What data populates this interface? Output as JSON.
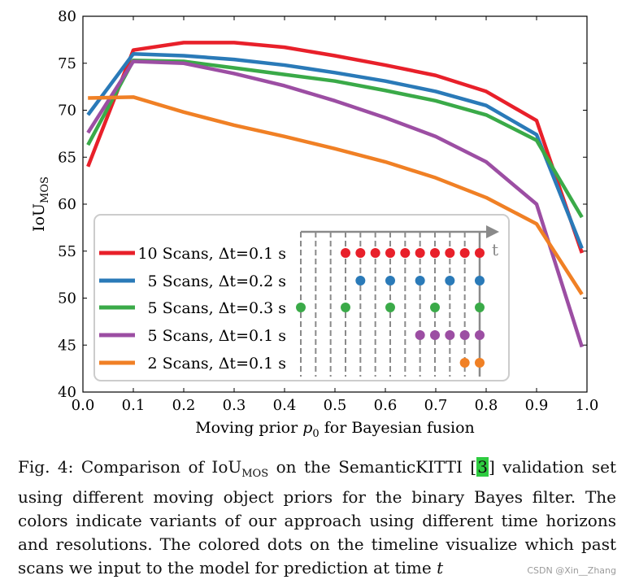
{
  "chart_data": {
    "type": "line",
    "xlabel_main": "Moving prior ",
    "xlabel_var": "p",
    "xlabel_sub": "0",
    "xlabel_tail": " for Bayesian fusion",
    "ylabel_main": "IoU",
    "ylabel_sub": "MOS",
    "xlim": [
      0.0,
      1.0
    ],
    "ylim": [
      40,
      80
    ],
    "xticks": [
      0.0,
      0.1,
      0.2,
      0.3,
      0.4,
      0.5,
      0.6,
      0.7,
      0.8,
      0.9,
      1.0
    ],
    "xtick_labels": [
      "0.0",
      "0.1",
      "0.2",
      "0.3",
      "0.4",
      "0.5",
      "0.6",
      "0.7",
      "0.8",
      "0.9",
      "1.0"
    ],
    "yticks": [
      40,
      45,
      50,
      55,
      60,
      65,
      70,
      75,
      80
    ],
    "ytick_labels": [
      "40",
      "45",
      "50",
      "55",
      "60",
      "65",
      "70",
      "75",
      "80"
    ],
    "x": [
      0.01,
      0.1,
      0.2,
      0.3,
      0.4,
      0.5,
      0.6,
      0.7,
      0.8,
      0.9,
      0.99
    ],
    "series": [
      {
        "name": "10 Scans, Δt=0.1 s",
        "color": "#e8202a",
        "values": [
          64.0,
          76.4,
          77.2,
          77.2,
          76.7,
          75.8,
          74.8,
          73.7,
          72.0,
          68.9,
          54.8
        ],
        "dots": [
          0.52,
          0.55,
          0.58,
          0.61,
          0.64,
          0.67,
          0.7,
          0.73,
          0.76,
          0.79
        ]
      },
      {
        "name": "5 Scans, Δt=0.2 s",
        "color": "#2a7ab8",
        "values": [
          69.5,
          76.0,
          75.8,
          75.4,
          74.8,
          74.0,
          73.1,
          72.0,
          70.5,
          67.4,
          55.3
        ],
        "dots": [
          0.55,
          0.61,
          0.67,
          0.73,
          0.79
        ]
      },
      {
        "name": "5 Scans, Δt=0.3 s",
        "color": "#3aaa48",
        "values": [
          66.3,
          75.3,
          75.2,
          74.5,
          73.8,
          73.1,
          72.1,
          71.0,
          69.5,
          66.8,
          58.6
        ],
        "dots": [
          0.43,
          0.52,
          0.61,
          0.7,
          0.79
        ]
      },
      {
        "name": "5 Scans, Δt=0.1 s",
        "color": "#9c4ea3",
        "values": [
          67.6,
          75.2,
          75.0,
          73.9,
          72.6,
          71.0,
          69.2,
          67.2,
          64.5,
          60.0,
          44.8
        ],
        "dots": [
          0.67,
          0.7,
          0.73,
          0.76,
          0.79
        ]
      },
      {
        "name": "2 Scans, Δt=0.1 s",
        "color": "#f08025",
        "values": [
          71.3,
          71.4,
          69.8,
          68.4,
          67.2,
          65.9,
          64.5,
          62.8,
          60.7,
          57.9,
          50.4
        ],
        "dots": [
          0.76,
          0.79
        ]
      }
    ],
    "legend": "lower-left",
    "timeline_label": "t",
    "timeline_ticks": [
      0.43,
      0.46,
      0.49,
      0.52,
      0.55,
      0.58,
      0.61,
      0.64,
      0.67,
      0.7,
      0.73,
      0.76,
      0.79
    ],
    "grid": false
  },
  "caption": {
    "prefix": "Fig. 4: Comparison of IoU",
    "sub": "MOS",
    "mid1": " on the SemanticKITTI [",
    "ref": "3",
    "rest": "] validation set using different moving object priors for the binary Bayes filter. The colors indicate variants of our approach using different time horizons and resolutions. The colored dots on the timeline visualize which past scans we input to the model for prediction at time ",
    "var": "t"
  },
  "watermark": "CSDN @Xin__Zhang"
}
